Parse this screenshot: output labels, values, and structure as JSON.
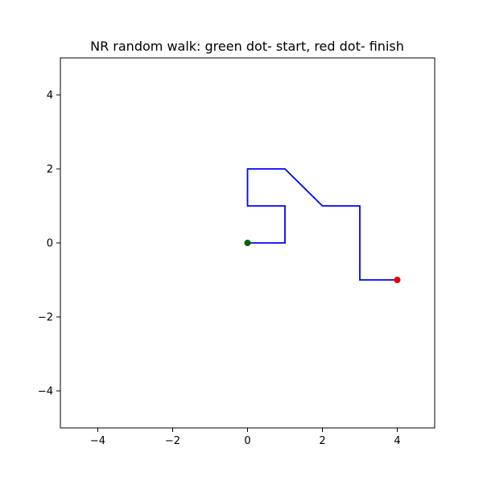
{
  "chart_data": {
    "type": "line",
    "title": "NR random walk: green dot- start, red dot- finish",
    "xlabel": "",
    "ylabel": "",
    "xlim": [
      -5,
      5
    ],
    "ylim": [
      -5,
      5
    ],
    "xticks": [
      -4,
      -2,
      0,
      2,
      4
    ],
    "yticks": [
      -4,
      -2,
      0,
      2,
      4
    ],
    "grid": false,
    "series": [
      {
        "color": "#0000ff",
        "x": [
          0,
          1,
          1,
          0,
          0,
          1,
          2,
          3,
          3,
          4
        ],
        "y": [
          0,
          0,
          1,
          1,
          2,
          2,
          1,
          1,
          -1,
          -1
        ]
      }
    ],
    "markers": [
      {
        "role": "start",
        "x": 0,
        "y": 0,
        "color": "#006400"
      },
      {
        "role": "finish",
        "x": 4,
        "y": -1,
        "color": "#e00000"
      }
    ]
  }
}
